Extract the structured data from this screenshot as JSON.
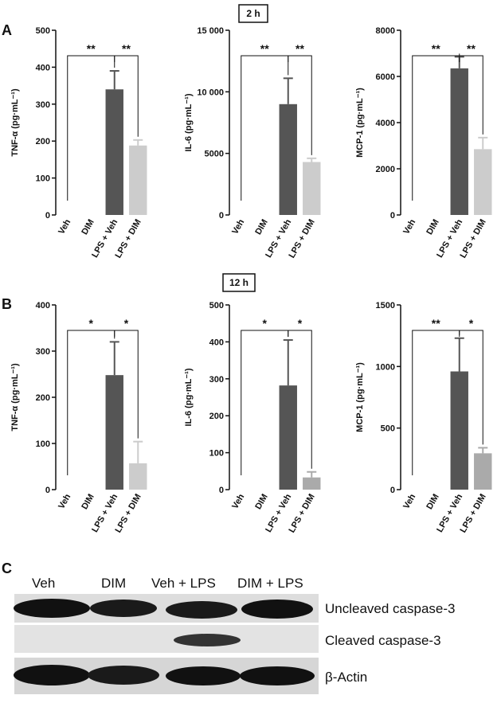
{
  "panel_labels": [
    "A",
    "B",
    "C"
  ],
  "time_labels": [
    "2 h",
    "12 h"
  ],
  "chart_data": [
    {
      "type": "bar",
      "ylabel": "TNF-α (pg·mL⁻¹)",
      "categories": [
        "Veh",
        "DIM",
        "LPS + Veh",
        "LPS + DIM"
      ],
      "values": [
        0,
        0,
        340,
        188
      ],
      "errors": [
        null,
        null,
        50,
        15
      ],
      "colors": [
        "#555555",
        "#555555",
        "#555555",
        "#cccccc"
      ],
      "ylim": [
        0,
        500
      ],
      "yticks": [
        0,
        100,
        200,
        300,
        400,
        500
      ],
      "significance": [
        "**",
        "**"
      ]
    },
    {
      "type": "bar",
      "ylabel": "IL-6 (pg·mL⁻¹)",
      "categories": [
        "Veh",
        "DIM",
        "LPS + Veh",
        "LPS + DIM"
      ],
      "values": [
        0,
        0,
        9000,
        4300
      ],
      "errors": [
        null,
        null,
        2100,
        300
      ],
      "colors": [
        "#555555",
        "#555555",
        "#555555",
        "#cccccc"
      ],
      "ylim": [
        0,
        15000
      ],
      "yticks": [
        0,
        5000,
        {
          "value": 10000,
          "label": "10 000"
        },
        {
          "value": 15000,
          "label": "15 000"
        }
      ],
      "significance": [
        "**",
        "**"
      ]
    },
    {
      "type": "bar",
      "ylabel": "MCP-1 (pg·mL⁻¹)",
      "categories": [
        "Veh",
        "DIM",
        "LPS + Veh",
        "LPS + DIM"
      ],
      "values": [
        0,
        0,
        6350,
        2850
      ],
      "errors": [
        null,
        null,
        500,
        500
      ],
      "colors": [
        "#555555",
        "#555555",
        "#555555",
        "#cccccc"
      ],
      "ylim": [
        0,
        8000
      ],
      "yticks": [
        0,
        2000,
        4000,
        6000,
        8000
      ],
      "significance": [
        "**",
        "**"
      ]
    },
    {
      "type": "bar",
      "ylabel": "TNF-α (pg·mL⁻¹)",
      "categories": [
        "Veh",
        "DIM",
        "LPS + Veh",
        "LPS + DIM"
      ],
      "values": [
        0,
        0,
        248,
        57
      ],
      "errors": [
        null,
        null,
        72,
        47
      ],
      "colors": [
        "#555555",
        "#555555",
        "#555555",
        "#cccccc"
      ],
      "ylim": [
        0,
        400
      ],
      "yticks": [
        0,
        100,
        200,
        300,
        400
      ],
      "significance": [
        "*",
        "*"
      ]
    },
    {
      "type": "bar",
      "ylabel": "IL-6 (pg·mL⁻¹)",
      "categories": [
        "Veh",
        "DIM",
        "LPS + Veh",
        "LPS + DIM"
      ],
      "values": [
        0,
        0,
        282,
        33
      ],
      "errors": [
        null,
        null,
        123,
        15
      ],
      "colors": [
        "#555555",
        "#555555",
        "#555555",
        "#aaaaaa"
      ],
      "ylim": [
        0,
        500
      ],
      "yticks": [
        0,
        100,
        200,
        300,
        400,
        500
      ],
      "significance": [
        "*",
        "*"
      ]
    },
    {
      "type": "bar",
      "ylabel": "MCP-1 (pg·mL⁻¹)",
      "categories": [
        "Veh",
        "DIM",
        "LPS + Veh",
        "LPS + DIM"
      ],
      "values": [
        0,
        0,
        960,
        295
      ],
      "errors": [
        null,
        null,
        270,
        45
      ],
      "colors": [
        "#555555",
        "#555555",
        "#555555",
        "#aaaaaa"
      ],
      "ylim": [
        0,
        1500
      ],
      "yticks": [
        0,
        500,
        1000,
        1500
      ],
      "significance": [
        "**",
        "*"
      ]
    }
  ],
  "blot": {
    "lanes": [
      "Veh",
      "DIM",
      "Veh + LPS",
      "DIM + LPS"
    ],
    "bands": [
      "Uncleaved caspase-3",
      "Cleaved caspase-3",
      "β-Actin"
    ]
  }
}
